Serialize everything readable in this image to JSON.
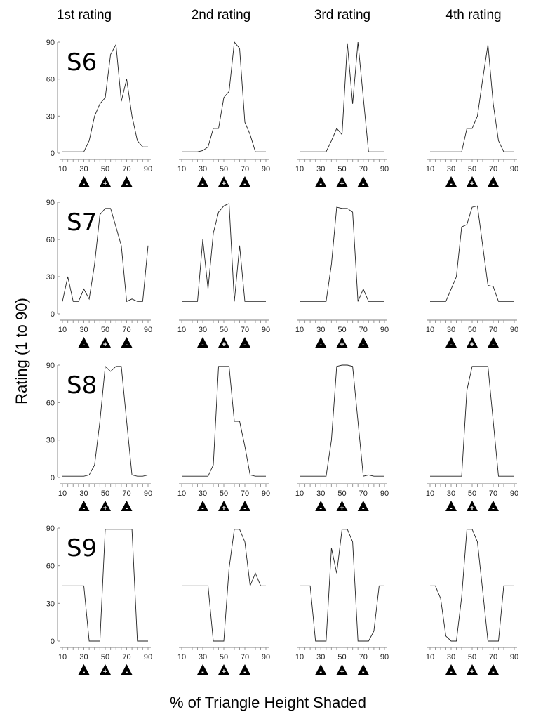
{
  "chart_data": {
    "type": "line",
    "grid": "4x4 small multiples",
    "xlabel": "% of Triangle Height Shaded",
    "ylabel": "Rating (1 to 90)",
    "x": [
      10,
      15,
      20,
      25,
      30,
      35,
      40,
      45,
      50,
      55,
      60,
      65,
      70,
      75,
      80,
      85,
      90
    ],
    "xticks": [
      "10",
      "30",
      "50",
      "70",
      "90"
    ],
    "yticks": [
      "0",
      "30",
      "60",
      "90"
    ],
    "xlim": [
      10,
      90
    ],
    "ylim": [
      0,
      90
    ],
    "columns": [
      "1st rating",
      "2nd rating",
      "3rd rating",
      "4th rating"
    ],
    "markers": [
      {
        "x": 30,
        "symbol": "-"
      },
      {
        "x": 50,
        "symbol": "+"
      },
      {
        "x": 70,
        "symbol": "-"
      }
    ],
    "rows": [
      {
        "label": "S6",
        "series": [
          [
            1,
            1,
            1,
            1,
            1,
            10,
            30,
            40,
            45,
            80,
            88,
            42,
            60,
            30,
            10,
            5,
            5
          ],
          [
            1,
            1,
            1,
            1,
            2,
            5,
            20,
            20,
            45,
            50,
            90,
            85,
            25,
            15,
            1,
            1,
            1
          ],
          [
            1,
            1,
            1,
            1,
            1,
            1,
            10,
            20,
            15,
            89,
            40,
            90,
            45,
            1,
            1,
            1,
            1
          ],
          [
            1,
            1,
            1,
            1,
            1,
            1,
            1,
            20,
            20,
            30,
            60,
            88,
            40,
            10,
            1,
            1,
            1
          ]
        ]
      },
      {
        "label": "S7",
        "series": [
          [
            10,
            30,
            10,
            10,
            20,
            12,
            40,
            80,
            85,
            85,
            70,
            55,
            10,
            12,
            10,
            10,
            55
          ],
          [
            10,
            10,
            10,
            10,
            60,
            20,
            65,
            82,
            87,
            89,
            10,
            55,
            10,
            10,
            10,
            10,
            10
          ],
          [
            10,
            10,
            10,
            10,
            10,
            10,
            40,
            86,
            85,
            85,
            82,
            10,
            20,
            10,
            10,
            10,
            10
          ],
          [
            10,
            10,
            10,
            10,
            20,
            30,
            70,
            72,
            86,
            87,
            55,
            23,
            22,
            10,
            10,
            10,
            10
          ]
        ]
      },
      {
        "label": "S8",
        "series": [
          [
            1,
            1,
            1,
            1,
            1,
            2,
            10,
            45,
            89,
            85,
            89,
            89,
            45,
            2,
            1,
            1,
            2
          ],
          [
            1,
            1,
            1,
            1,
            1,
            1,
            10,
            89,
            89,
            89,
            45,
            45,
            25,
            2,
            1,
            1,
            1
          ],
          [
            1,
            1,
            1,
            1,
            1,
            1,
            30,
            89,
            90,
            90,
            89,
            45,
            1,
            2,
            1,
            1,
            1
          ],
          [
            1,
            1,
            1,
            1,
            1,
            1,
            1,
            70,
            89,
            89,
            89,
            89,
            45,
            1,
            1,
            1,
            1
          ]
        ]
      },
      {
        "label": "S9",
        "series": [
          [
            44,
            44,
            44,
            44,
            44,
            0,
            0,
            0,
            89,
            89,
            89,
            89,
            89,
            89,
            0,
            0,
            0
          ],
          [
            44,
            44,
            44,
            44,
            44,
            44,
            0,
            0,
            0,
            58,
            89,
            89,
            79,
            44,
            54,
            44,
            44
          ],
          [
            44,
            44,
            44,
            0,
            0,
            0,
            74,
            54,
            89,
            89,
            79,
            0,
            0,
            0,
            8,
            44,
            44
          ],
          [
            44,
            44,
            34,
            4,
            0,
            0,
            35,
            89,
            89,
            79,
            40,
            0,
            0,
            0,
            44,
            44,
            44
          ]
        ]
      }
    ]
  }
}
